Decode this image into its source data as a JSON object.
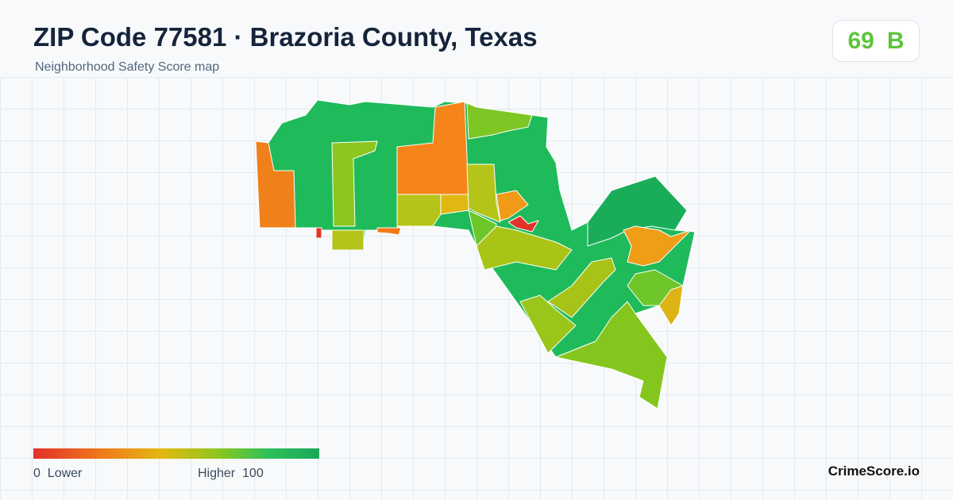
{
  "header": {
    "title": "ZIP Code 77581 · Brazoria County, Texas",
    "subtitle": "Neighborhood Safety Score map"
  },
  "score": {
    "value": 69,
    "grade": "B"
  },
  "legend": {
    "min": 0,
    "min_label": "Lower",
    "max_label": "Higher",
    "max": 100
  },
  "brand": "CrimeScore.io"
}
